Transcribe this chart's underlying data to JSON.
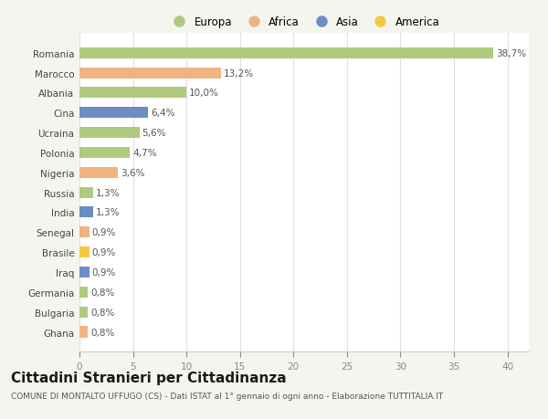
{
  "countries": [
    "Romania",
    "Marocco",
    "Albania",
    "Cina",
    "Ucraina",
    "Polonia",
    "Nigeria",
    "Russia",
    "India",
    "Senegal",
    "Brasile",
    "Iraq",
    "Germania",
    "Bulgaria",
    "Ghana"
  ],
  "values": [
    38.7,
    13.2,
    10.0,
    6.4,
    5.6,
    4.7,
    3.6,
    1.3,
    1.3,
    0.9,
    0.9,
    0.9,
    0.8,
    0.8,
    0.8
  ],
  "labels": [
    "38,7%",
    "13,2%",
    "10,0%",
    "6,4%",
    "5,6%",
    "4,7%",
    "3,6%",
    "1,3%",
    "1,3%",
    "0,9%",
    "0,9%",
    "0,9%",
    "0,8%",
    "0,8%",
    "0,8%"
  ],
  "continents": [
    "Europa",
    "Africa",
    "Europa",
    "Asia",
    "Europa",
    "Europa",
    "Africa",
    "Europa",
    "Asia",
    "Africa",
    "America",
    "Asia",
    "Europa",
    "Europa",
    "Africa"
  ],
  "continent_colors": {
    "Europa": "#afc97e",
    "Africa": "#f0b482",
    "Asia": "#6b8dc4",
    "America": "#f5c842"
  },
  "legend_order": [
    "Europa",
    "Africa",
    "Asia",
    "America"
  ],
  "legend_colors": [
    "#afc97e",
    "#f0b482",
    "#6b8dc4",
    "#f5c842"
  ],
  "xlim": [
    0,
    42
  ],
  "xticks": [
    0,
    5,
    10,
    15,
    20,
    25,
    30,
    35,
    40
  ],
  "title": "Cittadini Stranieri per Cittadinanza",
  "subtitle": "COMUNE DI MONTALTO UFFUGO (CS) - Dati ISTAT al 1° gennaio di ogni anno - Elaborazione TUTTITALIA.IT",
  "background_color": "#f5f5f0",
  "plot_bg_color": "#ffffff",
  "bar_height": 0.55,
  "label_fontsize": 7.5,
  "tick_fontsize": 7.5,
  "title_fontsize": 11,
  "subtitle_fontsize": 6.5,
  "legend_fontsize": 8.5
}
